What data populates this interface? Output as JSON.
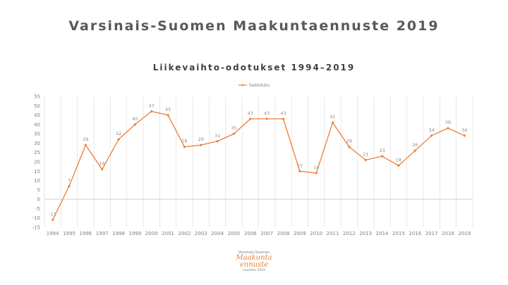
{
  "page_title": "Varsinais-Suomen Maakuntaennuste 2019",
  "logo": {
    "top": "Varsinais-Suomen",
    "line1": "Maakunta",
    "line2": "ennuste",
    "bottom": "vuodelle 2019"
  },
  "chart_data": {
    "type": "line",
    "title": "Liikevaihto-odotukset 1994–2019",
    "xlabel": "",
    "ylabel": "",
    "categories": [
      "1994",
      "1995",
      "1996",
      "1997",
      "1998",
      "1999",
      "2000",
      "2001",
      "2002",
      "2003",
      "2004",
      "2005",
      "2006",
      "2007",
      "2008",
      "2009",
      "2010",
      "2011",
      "2012",
      "2013",
      "2014",
      "2015",
      "2016",
      "2017",
      "2018",
      "2019"
    ],
    "series": [
      {
        "name": "Saldoluku",
        "values": [
          -11,
          7,
          29,
          16,
          32,
          40,
          47,
          45,
          28,
          29,
          31,
          35,
          43,
          43,
          43,
          15,
          14,
          41,
          28,
          21,
          23,
          18,
          26,
          34,
          38,
          34
        ]
      }
    ],
    "ylim": [
      -15,
      55
    ],
    "yticks": [
      -15,
      -10,
      -5,
      0,
      5,
      10,
      15,
      20,
      25,
      30,
      35,
      40,
      45,
      50,
      55
    ],
    "grid": "vertical",
    "legend_position": "top-center",
    "colors": {
      "line": "#ED7D31",
      "grid": "#d9d9d9",
      "text": "#7f7f7f"
    }
  }
}
